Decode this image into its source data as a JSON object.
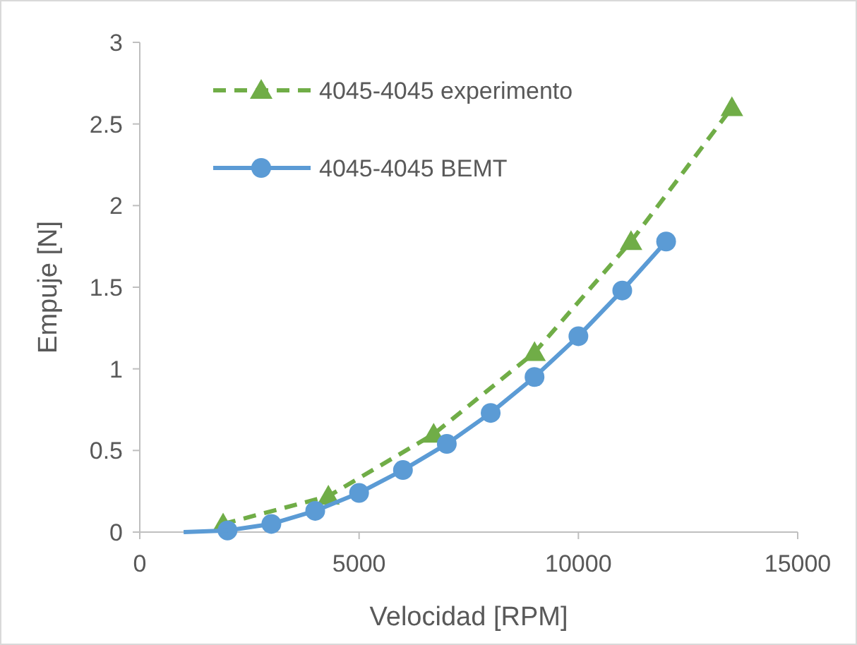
{
  "chart_data": {
    "type": "line",
    "xlabel": "Velocidad [RPM]",
    "ylabel": "Empuje [N]",
    "xlim": [
      0,
      15000
    ],
    "xticks": [
      0,
      5000,
      10000,
      15000
    ],
    "ylim": [
      0,
      3
    ],
    "yticks": [
      0,
      0.5,
      1,
      1.5,
      2,
      2.5,
      3
    ],
    "grid": false,
    "legend": "top left",
    "series": [
      {
        "name": "4045-4045 experimento",
        "color": "#70ad47",
        "marker": "triangle",
        "line_style": "dashed",
        "x": [
          1900,
          4300,
          6700,
          9000,
          11200,
          13500
        ],
        "values": [
          0.05,
          0.22,
          0.6,
          1.1,
          1.78,
          2.6
        ]
      },
      {
        "name": "4045-4045 BEMT",
        "color": "#5b9bd5",
        "marker": "circle",
        "line_style": "solid",
        "x": [
          2000,
          3000,
          4000,
          5000,
          6000,
          7000,
          8000,
          9000,
          10000,
          11000,
          12000
        ],
        "values": [
          0.01,
          0.05,
          0.13,
          0.24,
          0.38,
          0.54,
          0.73,
          0.95,
          1.2,
          1.48,
          1.78
        ]
      },
      {
        "color": "#5b9bd5",
        "marker": "none",
        "line_style": "solid",
        "x": [
          1000,
          2000
        ],
        "values": [
          0,
          0.01
        ]
      }
    ]
  }
}
